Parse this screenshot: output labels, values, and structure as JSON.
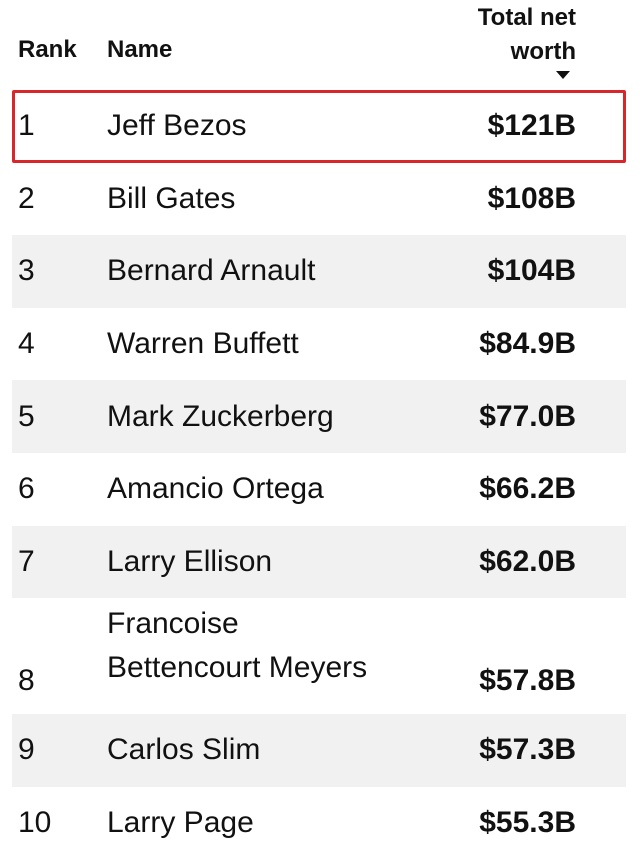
{
  "header": {
    "rank": "Rank",
    "name": "Name",
    "worth_line1": "Total net",
    "worth_line2": "worth"
  },
  "rows": [
    {
      "rank": "1",
      "name": "Jeff Bezos",
      "worth": "$121B"
    },
    {
      "rank": "2",
      "name": "Bill Gates",
      "worth": "$108B"
    },
    {
      "rank": "3",
      "name": "Bernard Arnault",
      "worth": "$104B"
    },
    {
      "rank": "4",
      "name": "Warren Buffett",
      "worth": "$84.9B"
    },
    {
      "rank": "5",
      "name": "Mark Zuckerberg",
      "worth": "$77.0B"
    },
    {
      "rank": "6",
      "name": "Amancio Ortega",
      "worth": "$66.2B"
    },
    {
      "rank": "7",
      "name": "Larry Ellison",
      "worth": "$62.0B"
    },
    {
      "rank": "8",
      "name_line1": "Francoise",
      "name_line2": "Bettencourt Meyers",
      "worth": "$57.8B"
    },
    {
      "rank": "9",
      "name": "Carlos Slim",
      "worth": "$57.3B"
    },
    {
      "rank": "10",
      "name": "Larry Page",
      "worth": "$55.3B"
    }
  ],
  "highlight_color": "#d9262b",
  "sort_icon": "sort-descending-icon"
}
